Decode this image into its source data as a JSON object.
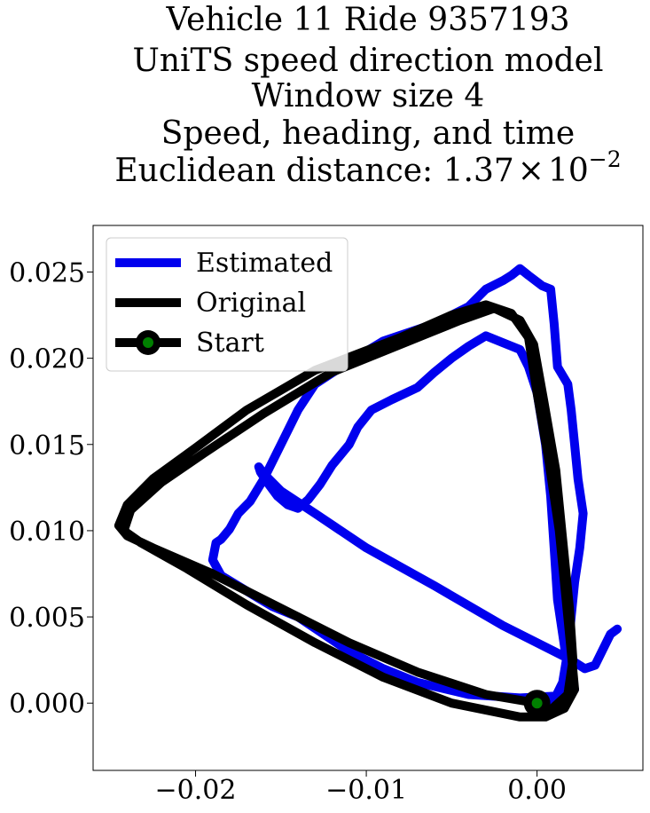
{
  "chart_data": {
    "type": "line",
    "title_lines": [
      "Vehicle 11 Ride 9357193",
      "UniTS speed direction model",
      "Window size 4",
      "Speed, heading, and time",
      "Euclidean distance: "
    ],
    "title_math": {
      "mantissa": "1.37",
      "times": "×",
      "base": "10",
      "exponent": "−2"
    },
    "xlabel": "",
    "ylabel": "",
    "xlim": [
      -0.026,
      0.0062
    ],
    "ylim": [
      -0.0039,
      0.0277
    ],
    "xticks": [
      -0.02,
      -0.01,
      0.0
    ],
    "xtick_labels": [
      "−0.02",
      "−0.01",
      "0.00"
    ],
    "yticks": [
      0.0,
      0.005,
      0.01,
      0.015,
      0.02,
      0.025
    ],
    "ytick_labels": [
      "0.000",
      "0.005",
      "0.010",
      "0.015",
      "0.020",
      "0.025"
    ],
    "grid": false,
    "legend_position": "upper-left",
    "series": [
      {
        "name": "Estimated",
        "color": "#0000ee",
        "points": [
          [
            0.0047,
            0.0043
          ],
          [
            0.0043,
            0.004
          ],
          [
            0.0038,
            0.003
          ],
          [
            0.0034,
            0.0022
          ],
          [
            0.0028,
            0.002
          ],
          [
            0.002,
            0.0025
          ],
          [
            -0.002,
            0.0045
          ],
          [
            -0.006,
            0.0068
          ],
          [
            -0.01,
            0.009
          ],
          [
            -0.013,
            0.011
          ],
          [
            -0.015,
            0.0123
          ],
          [
            -0.016,
            0.0133
          ],
          [
            -0.0163,
            0.0137
          ],
          [
            -0.0162,
            0.0134
          ],
          [
            -0.0158,
            0.0128
          ],
          [
            -0.0152,
            0.012
          ],
          [
            -0.0146,
            0.0115
          ],
          [
            -0.014,
            0.0113
          ],
          [
            -0.0134,
            0.0118
          ],
          [
            -0.0127,
            0.0127
          ],
          [
            -0.012,
            0.0138
          ],
          [
            -0.011,
            0.015
          ],
          [
            -0.0105,
            0.016
          ],
          [
            -0.0097,
            0.017
          ],
          [
            -0.0085,
            0.0176
          ],
          [
            -0.007,
            0.0183
          ],
          [
            -0.006,
            0.0192
          ],
          [
            -0.005,
            0.02
          ],
          [
            -0.004,
            0.0207
          ],
          [
            -0.003,
            0.0213
          ],
          [
            -0.002,
            0.0209
          ],
          [
            -0.001,
            0.0205
          ],
          [
            -0.0005,
            0.0195
          ],
          [
            0.0,
            0.018
          ],
          [
            0.0005,
            0.015
          ],
          [
            0.0008,
            0.012
          ],
          [
            0.001,
            0.009
          ],
          [
            0.0012,
            0.006
          ],
          [
            0.0015,
            0.004
          ],
          [
            0.0018,
            0.002
          ],
          [
            0.0022,
            0.0008
          ],
          [
            0.002,
            0.0006
          ],
          [
            0.001,
            0.0004
          ],
          [
            -0.001,
            0.0003
          ],
          [
            -0.004,
            0.0005
          ],
          [
            -0.007,
            0.0012
          ],
          [
            -0.009,
            0.002
          ],
          [
            -0.011,
            0.003
          ],
          [
            -0.0125,
            0.004
          ],
          [
            -0.014,
            0.005
          ],
          [
            -0.0155,
            0.0056
          ],
          [
            -0.0165,
            0.0062
          ],
          [
            -0.0175,
            0.0068
          ],
          [
            -0.0185,
            0.0074
          ],
          [
            -0.019,
            0.0083
          ],
          [
            -0.0188,
            0.0093
          ],
          [
            -0.0185,
            0.0095
          ],
          [
            -0.018,
            0.0101
          ],
          [
            -0.0175,
            0.011
          ],
          [
            -0.0168,
            0.0117
          ],
          [
            -0.016,
            0.013
          ],
          [
            -0.015,
            0.015
          ],
          [
            -0.014,
            0.017
          ],
          [
            -0.013,
            0.0185
          ],
          [
            -0.011,
            0.0198
          ],
          [
            -0.009,
            0.021
          ],
          [
            -0.006,
            0.022
          ],
          [
            -0.004,
            0.023
          ],
          [
            -0.003,
            0.024
          ],
          [
            -0.002,
            0.0245
          ],
          [
            -0.0015,
            0.0248
          ],
          [
            -0.001,
            0.0252
          ],
          [
            -0.0005,
            0.0248
          ],
          [
            0.0003,
            0.0242
          ],
          [
            0.0008,
            0.024
          ],
          [
            0.001,
            0.022
          ],
          [
            0.0012,
            0.0195
          ],
          [
            0.0018,
            0.0185
          ],
          [
            0.002,
            0.017
          ],
          [
            0.0022,
            0.015
          ],
          [
            0.0024,
            0.013
          ],
          [
            0.0027,
            0.011
          ],
          [
            0.0025,
            0.009
          ],
          [
            0.0022,
            0.007
          ],
          [
            0.002,
            0.005
          ],
          [
            0.0018,
            0.003
          ],
          [
            0.0015,
            0.0012
          ],
          [
            0.001,
            0.0002
          ],
          [
            0.0005,
            -0.0004
          ],
          [
            0.0,
            -0.0002
          ]
        ]
      },
      {
        "name": "Original",
        "color": "#000000",
        "points": [
          [
            0.0,
            0.0
          ],
          [
            -0.003,
            0.0005
          ],
          [
            -0.007,
            0.0018
          ],
          [
            -0.011,
            0.0035
          ],
          [
            -0.015,
            0.0055
          ],
          [
            -0.019,
            0.0075
          ],
          [
            -0.0225,
            0.009
          ],
          [
            -0.024,
            0.0097
          ],
          [
            -0.0245,
            0.0103
          ],
          [
            -0.024,
            0.0115
          ],
          [
            -0.0225,
            0.013
          ],
          [
            -0.02,
            0.0148
          ],
          [
            -0.017,
            0.017
          ],
          [
            -0.013,
            0.0193
          ],
          [
            -0.008,
            0.0212
          ],
          [
            -0.005,
            0.0225
          ],
          [
            -0.003,
            0.0231
          ],
          [
            -0.0015,
            0.0226
          ],
          [
            -0.0005,
            0.0212
          ],
          [
            0.0,
            0.018
          ],
          [
            0.0007,
            0.014
          ],
          [
            0.0013,
            0.01
          ],
          [
            0.0017,
            0.006
          ],
          [
            0.002,
            0.003
          ],
          [
            0.0022,
            0.0008
          ],
          [
            0.0016,
            -0.0003
          ],
          [
            0.0005,
            -0.0008
          ],
          [
            -0.001,
            -0.0008
          ],
          [
            -0.005,
            0.0
          ],
          [
            -0.009,
            0.0015
          ],
          [
            -0.013,
            0.0035
          ],
          [
            -0.017,
            0.0057
          ],
          [
            -0.0205,
            0.0078
          ],
          [
            -0.0232,
            0.0093
          ],
          [
            -0.0242,
            0.01
          ],
          [
            -0.0238,
            0.0112
          ],
          [
            -0.022,
            0.0128
          ],
          [
            -0.0195,
            0.0145
          ],
          [
            -0.016,
            0.0168
          ],
          [
            -0.012,
            0.0192
          ],
          [
            -0.0075,
            0.021
          ],
          [
            -0.0045,
            0.0222
          ],
          [
            -0.0025,
            0.0229
          ],
          [
            -0.001,
            0.0222
          ],
          [
            -0.0002,
            0.0208
          ],
          [
            0.0004,
            0.0175
          ],
          [
            0.0011,
            0.0135
          ],
          [
            0.0015,
            0.0095
          ],
          [
            0.0019,
            0.0055
          ],
          [
            0.0021,
            0.0025
          ],
          [
            0.0018,
            0.0005
          ],
          [
            0.0008,
            -0.0004
          ],
          [
            0.0,
            0.0
          ]
        ]
      }
    ],
    "start_marker": {
      "name": "Start",
      "x": 0.0,
      "y": 0.0,
      "outer_color": "#000000",
      "inner_color": "#008000"
    }
  }
}
